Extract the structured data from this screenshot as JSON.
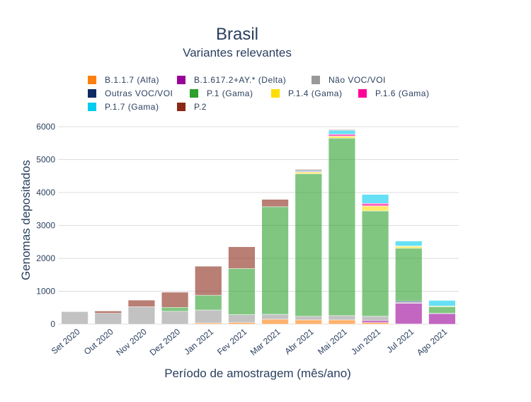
{
  "chart_data": {
    "type": "bar",
    "stacked": true,
    "title": "Brasil",
    "subtitle": "Variantes relevantes",
    "xlabel": "Período de amostragem (mês/ano)",
    "ylabel": "Genomas depositados",
    "ylim": [
      0,
      6150
    ],
    "yticks": [
      0,
      1000,
      2000,
      3000,
      4000,
      5000,
      6000
    ],
    "grid": true,
    "legend_position": "top",
    "categories": [
      "Set 2020",
      "Out 2020",
      "Nov 2020",
      "Dez 2020",
      "Jan 2021",
      "Fev 2021",
      "Mar 2021",
      "Abr 2021",
      "Mai 2021",
      "Jun 2021",
      "Jul 2021",
      "Ago 2021"
    ],
    "series": [
      {
        "name": "B.1.1.7 (Alfa)",
        "color": "#ff7f0e",
        "values": [
          0,
          0,
          0,
          0,
          40,
          50,
          150,
          130,
          130,
          50,
          5,
          0
        ]
      },
      {
        "name": "B.1.617.2+AY.* (Delta)",
        "color": "#990099",
        "values": [
          0,
          0,
          0,
          0,
          0,
          0,
          0,
          0,
          0,
          60,
          630,
          320
        ]
      },
      {
        "name": "Não VOC/VOI",
        "color": "#999999",
        "values": [
          380,
          330,
          530,
          390,
          390,
          240,
          150,
          110,
          130,
          110,
          30,
          0
        ]
      },
      {
        "name": "Outras VOC/VOI",
        "color": "#0d2a63",
        "values": [
          0,
          0,
          0,
          0,
          0,
          0,
          0,
          0,
          0,
          20,
          40,
          10
        ]
      },
      {
        "name": "P.1 (Gama)",
        "color": "#2ca02c",
        "values": [
          0,
          0,
          0,
          120,
          450,
          1400,
          3270,
          4330,
          5390,
          3200,
          1600,
          200
        ]
      },
      {
        "name": "P.1.4 (Gama)",
        "color": "#ffdd00",
        "values": [
          0,
          0,
          0,
          0,
          0,
          0,
          0,
          50,
          60,
          150,
          60,
          20
        ]
      },
      {
        "name": "P.1.6 (Gama)",
        "color": "#ff0099",
        "values": [
          0,
          0,
          0,
          0,
          0,
          0,
          0,
          20,
          60,
          80,
          10,
          0
        ]
      },
      {
        "name": "P.1.7 (Gama)",
        "color": "#00ccee",
        "values": [
          0,
          0,
          0,
          0,
          0,
          0,
          0,
          30,
          120,
          270,
          150,
          170
        ]
      },
      {
        "name": "P.2",
        "color": "#8b2817",
        "values": [
          0,
          70,
          200,
          460,
          880,
          660,
          220,
          30,
          20,
          0,
          0,
          0
        ]
      }
    ]
  }
}
